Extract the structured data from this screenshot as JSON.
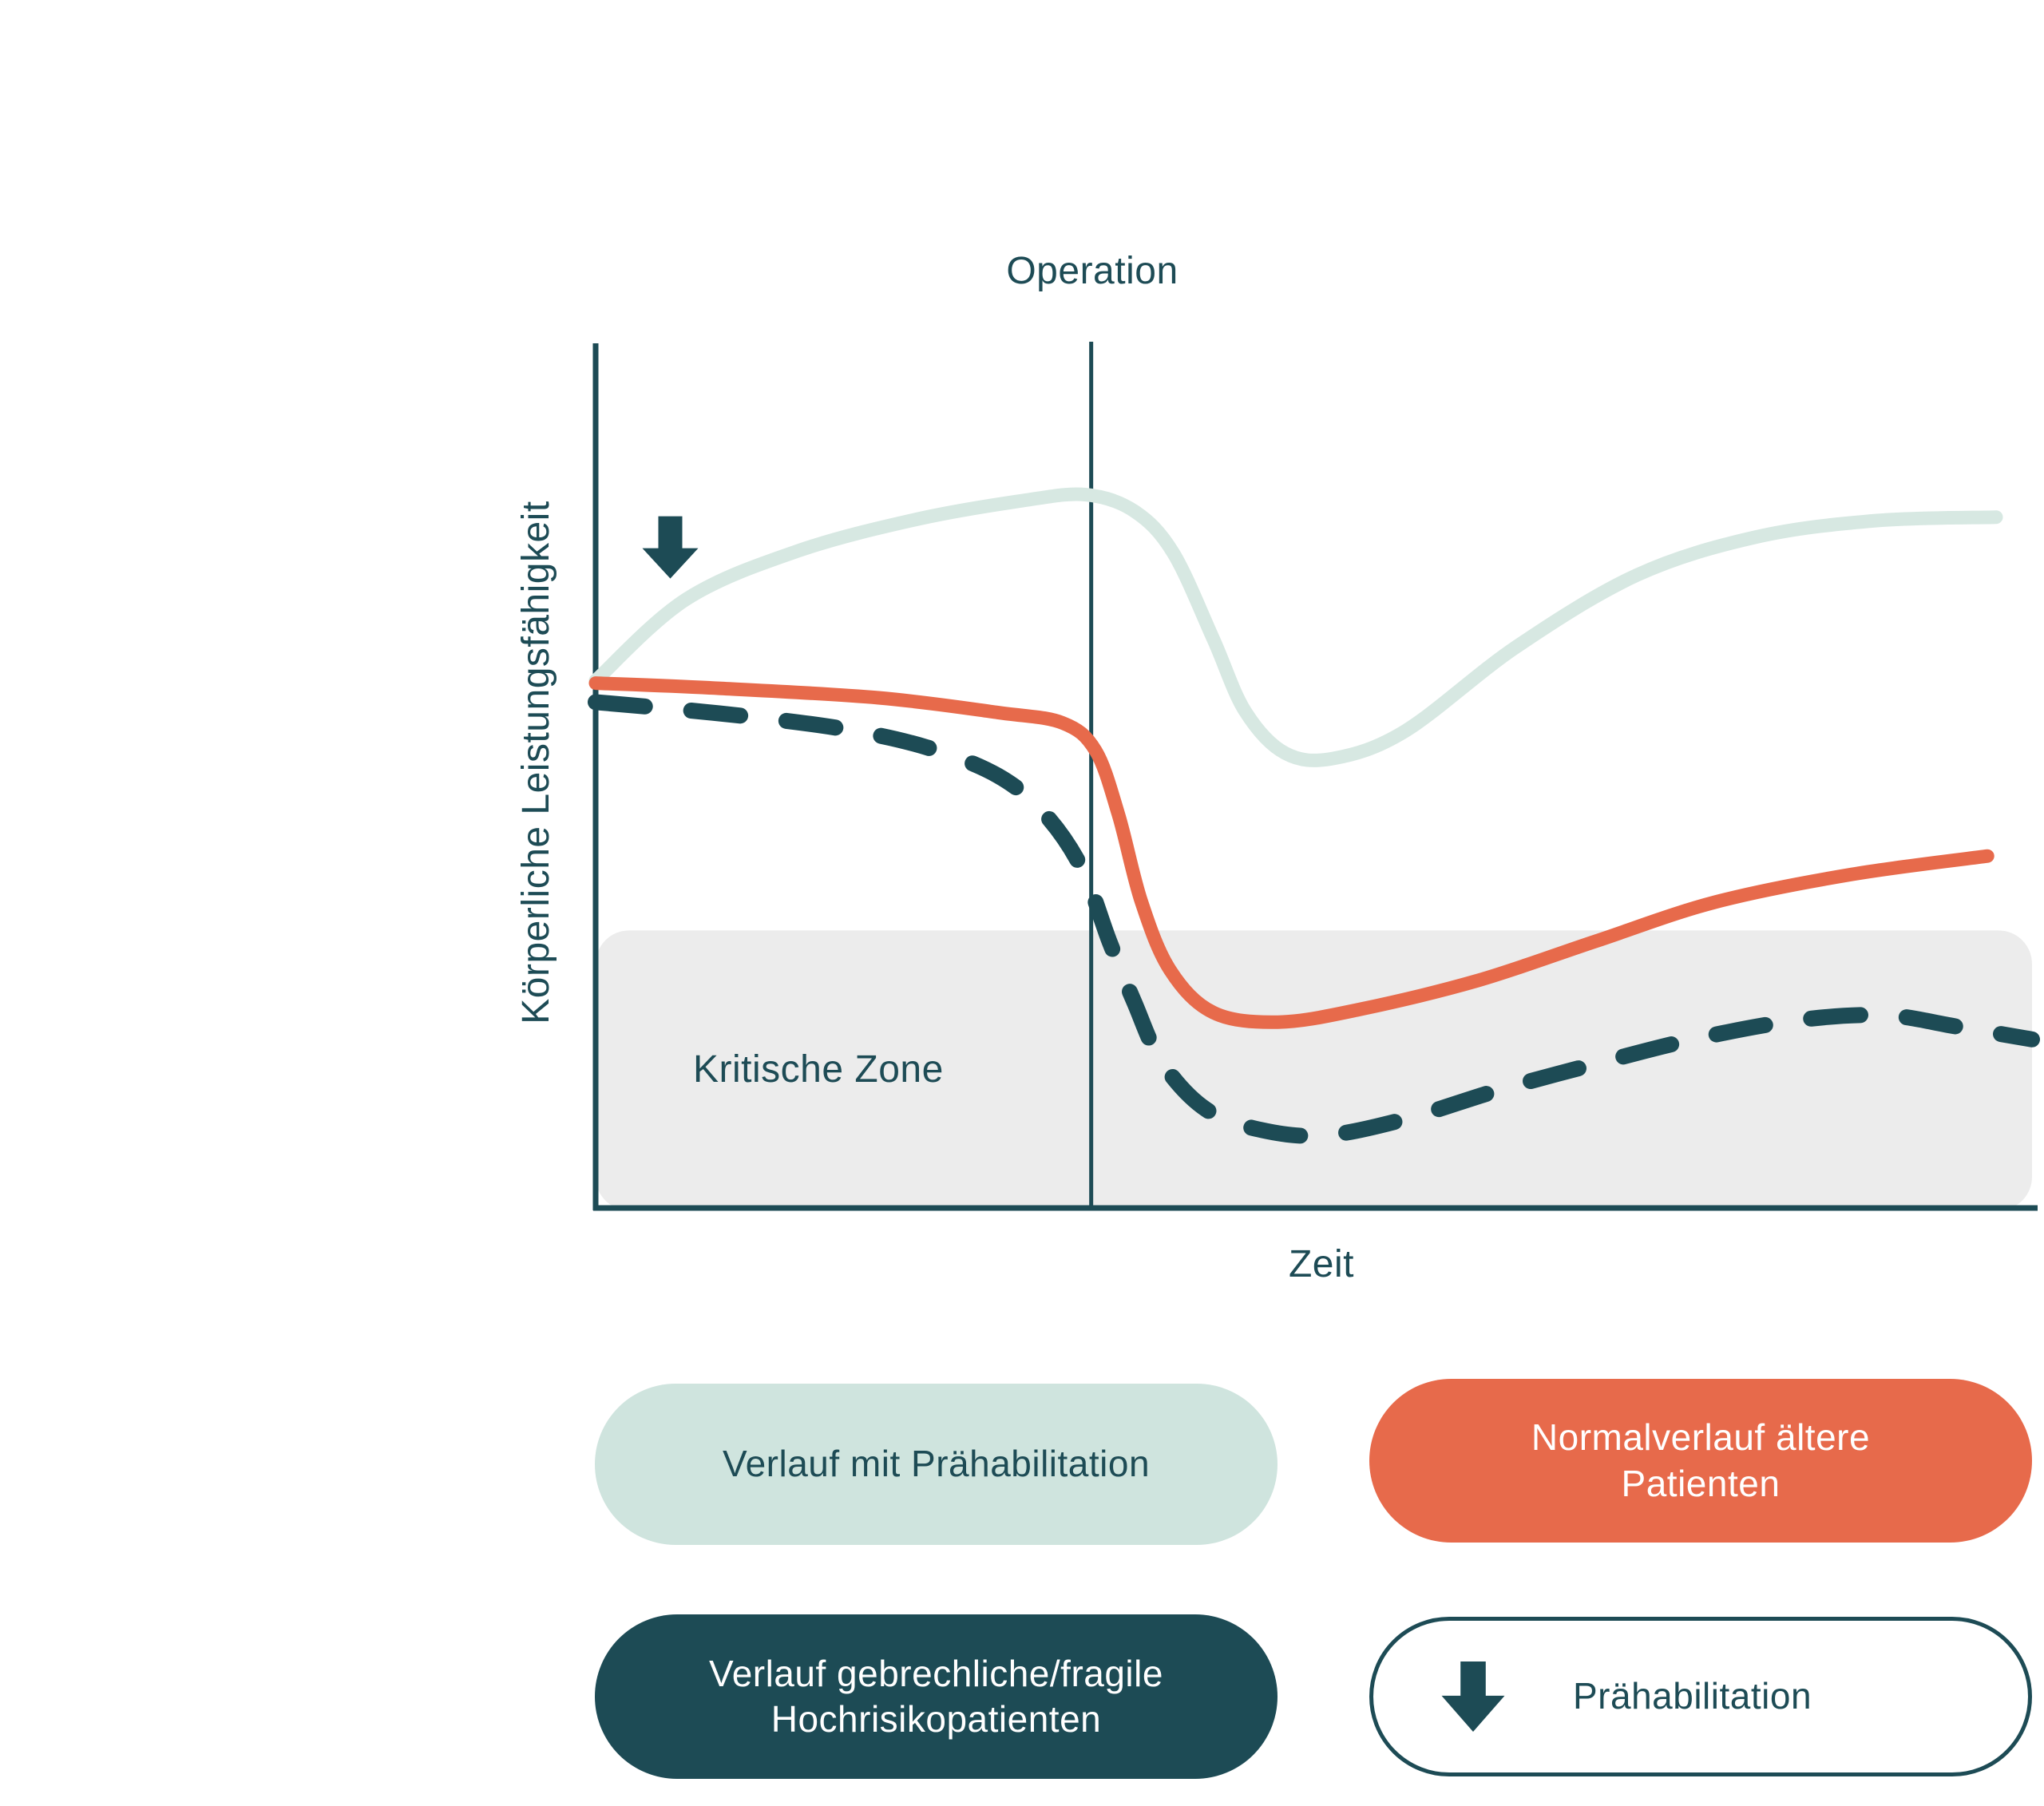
{
  "colors": {
    "teal": "#1d4b55",
    "orange": "#e76a4b",
    "mint_pill": "#cfe4de",
    "mint_curve": "#d7e8e2",
    "critical_zone_gray": "#ececec",
    "white": "#ffffff"
  },
  "chart": {
    "operation_label": "Operation",
    "y_axis_label": "Körperliche Leistungsfähigkeit",
    "x_axis_label": "Zeit",
    "critical_zone_label": "Kritische Zone"
  },
  "legend": [
    {
      "id": "prehab-course",
      "label": "Verlauf mit Prähabilitation",
      "style": "mint"
    },
    {
      "id": "normal-course",
      "label": "Normalverlauf ältere Patienten",
      "style": "orange"
    },
    {
      "id": "frail-course",
      "label": "Verlauf gebrechliche/fragile Hochrisikopatienten",
      "style": "teal"
    },
    {
      "id": "prehabilitation",
      "label": "Prähabilitation",
      "style": "outline-with-down-arrow"
    }
  ],
  "chart_data": {
    "type": "line",
    "title": "",
    "xlabel": "Zeit",
    "ylabel": "Körperliche Leistungsfähigkeit",
    "xlim": [
      0,
      100
    ],
    "ylim": [
      0,
      100
    ],
    "grid": false,
    "legend_position": "bottom",
    "axes_numeric_ticks": false,
    "annotations": {
      "operation_line_x": 34.5,
      "critical_zone": {
        "label": "Kritische Zone",
        "y_below": 32.1
      },
      "prehabilitation_arrow": {
        "x": 5.2,
        "y_top": 80
      }
    },
    "series": [
      {
        "name": "Verlauf mit Prähabilitation",
        "color": "#d7e8e2",
        "style": "solid",
        "points": [
          [
            0,
            61.0
          ],
          [
            6.3,
            70.4
          ],
          [
            14.1,
            76.0
          ],
          [
            22.5,
            79.7
          ],
          [
            29.7,
            81.8
          ],
          [
            34.1,
            82.5
          ],
          [
            37.5,
            80.6
          ],
          [
            40.2,
            75.8
          ],
          [
            43.0,
            65.8
          ],
          [
            45.2,
            57.5
          ],
          [
            48.0,
            52.6
          ],
          [
            51.4,
            52.0
          ],
          [
            56.4,
            55.2
          ],
          [
            64.1,
            64.9
          ],
          [
            72.5,
            73.2
          ],
          [
            80.8,
            77.6
          ],
          [
            89.2,
            79.5
          ],
          [
            97.5,
            79.9
          ]
        ]
      },
      {
        "name": "Normalverlauf ältere Patienten",
        "color": "#e76a4b",
        "style": "solid",
        "points": [
          [
            0,
            60.7
          ],
          [
            8.6,
            60.1
          ],
          [
            19.7,
            59.0
          ],
          [
            28.0,
            57.3
          ],
          [
            32.5,
            56.1
          ],
          [
            34.8,
            52.9
          ],
          [
            36.4,
            45.5
          ],
          [
            38.0,
            35.4
          ],
          [
            40.0,
            27.5
          ],
          [
            43.0,
            22.6
          ],
          [
            47.5,
            21.5
          ],
          [
            53.0,
            22.9
          ],
          [
            61.4,
            26.3
          ],
          [
            69.7,
            30.9
          ],
          [
            78.0,
            35.4
          ],
          [
            87.5,
            38.6
          ],
          [
            96.9,
            40.7
          ]
        ]
      },
      {
        "name": "Verlauf gebrechliche/fragile Hochrisikopatienten",
        "color": "#1d4b55",
        "style": "dashed",
        "points": [
          [
            0,
            58.5
          ],
          [
            8.6,
            57.2
          ],
          [
            16.9,
            55.5
          ],
          [
            23.0,
            53.3
          ],
          [
            28.0,
            50.0
          ],
          [
            31.3,
            45.5
          ],
          [
            33.9,
            39.1
          ],
          [
            35.8,
            30.7
          ],
          [
            37.5,
            23.8
          ],
          [
            39.4,
            16.9
          ],
          [
            42.5,
            11.4
          ],
          [
            46.4,
            9.0
          ],
          [
            50.8,
            8.4
          ],
          [
            56.4,
            10.3
          ],
          [
            63.0,
            13.7
          ],
          [
            69.7,
            16.7
          ],
          [
            76.4,
            19.5
          ],
          [
            83.6,
            21.7
          ],
          [
            89.7,
            22.3
          ],
          [
            94.7,
            21.0
          ],
          [
            100,
            19.5
          ]
        ]
      }
    ]
  }
}
